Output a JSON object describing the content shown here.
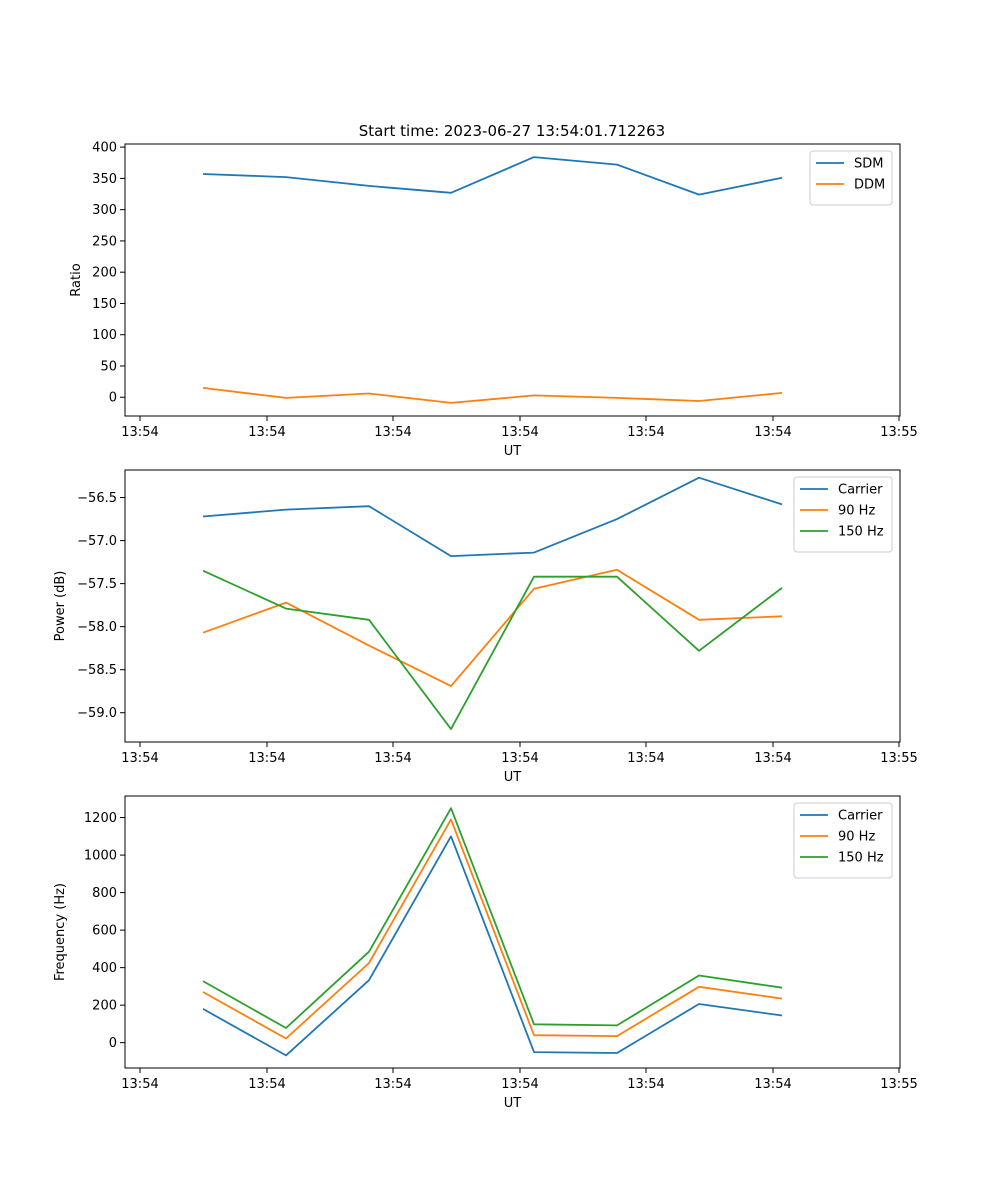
{
  "title": "Start time: 2023-06-27 13:54:01.712263",
  "colors": {
    "c0": "#1f77b4",
    "c1": "#ff7f0e",
    "c2": "#2ca02c"
  },
  "chart_data": [
    {
      "type": "line",
      "xlabel": "UT",
      "ylabel": "Ratio",
      "x_tick_labels": [
        "13:54",
        "13:54",
        "13:54",
        "13:54",
        "13:54",
        "13:54",
        "13:54"
      ],
      "x_tick_label_last": "13:55",
      "y_ticks": [
        0,
        50,
        100,
        150,
        200,
        250,
        300,
        350,
        400
      ],
      "y_tick_labels": [
        "0",
        "50",
        "100",
        "150",
        "200",
        "250",
        "300",
        "350",
        "400"
      ],
      "ylim": [
        -30,
        405
      ],
      "legend_position": "top-right",
      "series": [
        {
          "name": "SDM",
          "color": "#1f77b4",
          "values": [
            357,
            352,
            338,
            327,
            384,
            372,
            324,
            351
          ]
        },
        {
          "name": "DDM",
          "color": "#ff7f0e",
          "values": [
            15,
            -1,
            6,
            -9,
            3,
            -1,
            -6,
            7
          ]
        }
      ]
    },
    {
      "type": "line",
      "xlabel": "UT",
      "ylabel": "Power (dB)",
      "x_tick_labels": [
        "13:54",
        "13:54",
        "13:54",
        "13:54",
        "13:54",
        "13:54",
        "13:54"
      ],
      "x_tick_label_last": "13:55",
      "y_ticks": [
        -59.0,
        -58.5,
        -58.0,
        -57.5,
        -57.0,
        -56.5
      ],
      "y_tick_labels": [
        "−59.0",
        "−58.5",
        "−58.0",
        "−57.5",
        "−57.0",
        "−56.5"
      ],
      "ylim": [
        -59.34,
        -56.18
      ],
      "legend_position": "top-right",
      "series": [
        {
          "name": "Carrier",
          "color": "#1f77b4",
          "values": [
            -56.72,
            -56.64,
            -56.6,
            -57.18,
            -57.14,
            -56.75,
            -56.27,
            -56.58
          ]
        },
        {
          "name": "90 Hz",
          "color": "#ff7f0e",
          "values": [
            -58.07,
            -57.72,
            -58.22,
            -58.69,
            -57.56,
            -57.34,
            -57.92,
            -57.88
          ]
        },
        {
          "name": "150 Hz",
          "color": "#2ca02c",
          "values": [
            -57.35,
            -57.79,
            -57.92,
            -59.19,
            -57.42,
            -57.42,
            -58.28,
            -57.55
          ]
        }
      ]
    },
    {
      "type": "line",
      "xlabel": "UT",
      "ylabel": "Frequency (Hz)",
      "x_tick_labels": [
        "13:54",
        "13:54",
        "13:54",
        "13:54",
        "13:54",
        "13:54",
        "13:54"
      ],
      "x_tick_label_last": "13:55",
      "y_ticks": [
        0,
        200,
        400,
        600,
        800,
        1000,
        1200
      ],
      "y_tick_labels": [
        "0",
        "200",
        "400",
        "600",
        "800",
        "1000",
        "1200"
      ],
      "ylim": [
        -135,
        1315
      ],
      "legend_position": "top-right",
      "series": [
        {
          "name": "Carrier",
          "color": "#1f77b4",
          "values": [
            180,
            -68,
            333,
            1100,
            -50,
            -55,
            206,
            145
          ]
        },
        {
          "name": "90 Hz",
          "color": "#ff7f0e",
          "values": [
            270,
            22,
            425,
            1190,
            40,
            35,
            298,
            235
          ]
        },
        {
          "name": "150 Hz",
          "color": "#2ca02c",
          "values": [
            328,
            78,
            485,
            1250,
            98,
            92,
            358,
            293
          ]
        }
      ]
    }
  ]
}
